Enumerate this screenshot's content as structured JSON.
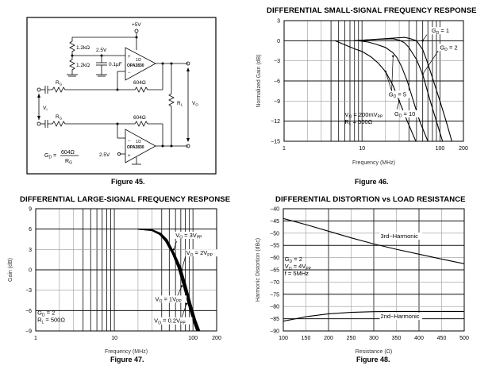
{
  "figure45": {
    "caption": "Figure 45.",
    "labels": {
      "supply": "+5V",
      "r_top": "1.2kΩ",
      "r_bot": "1.2kΩ",
      "bias": "2.5V",
      "cap": "0.1µF",
      "opamp_half": "1/2",
      "opamp_name": "OPA2830",
      "rf_top": "604Ω",
      "rf_bot": "604Ω",
      "rg": "R",
      "rg_sub": "G",
      "rl": "R",
      "rl_sub": "L",
      "vi": "V",
      "vi_sub": "I",
      "vo": "V",
      "vo_sub": "O",
      "bias_bottom": "2.5V",
      "plus": "+",
      "minus": "−",
      "gain_lhs": "G",
      "gain_lhs_sub": "D",
      "gain_eq": "=",
      "gain_num": "604Ω",
      "gain_den": "R",
      "gain_den_sub": "G"
    }
  },
  "chart_data": [
    {
      "id": "fig46",
      "type": "line",
      "title": "DIFFERENTIAL SMALL-SIGNAL FREQUENCY RESPONSE",
      "caption": "Figure 46.",
      "xlabel": "Frequency (MHz)",
      "ylabel": "Normalized Gain (dB)",
      "xscale": "log",
      "xlim": [
        1,
        200
      ],
      "ylim": [
        -15,
        3
      ],
      "xticks": [
        1,
        10,
        100,
        200
      ],
      "xtick_labels": [
        "1",
        "10",
        "100",
        "200"
      ],
      "yticks": [
        3,
        0,
        -3,
        -6,
        -9,
        -12,
        -15
      ],
      "ytick_labels": [
        "3",
        "0",
        "−3",
        "−6",
        "−9",
        "−12",
        "−15"
      ],
      "grid": true,
      "series": [
        {
          "name": "GD = 1",
          "x": [
            8,
            15,
            25,
            35,
            42,
            50,
            60,
            68,
            80,
            100,
            120,
            142
          ],
          "y": [
            0,
            0.2,
            0.4,
            0.5,
            0.3,
            0,
            -1.3,
            -3,
            -5.5,
            -9,
            -12,
            -15
          ]
        },
        {
          "name": "GD = 2",
          "x": [
            8,
            15,
            25,
            30,
            35,
            40,
            50,
            60,
            75,
            90,
            108
          ],
          "y": [
            0,
            0.2,
            0.3,
            0.1,
            -0.3,
            -1,
            -2.8,
            -5,
            -9,
            -12,
            -15
          ]
        },
        {
          "name": "GD = 5",
          "x": [
            9,
            12,
            15,
            20,
            25,
            28,
            32,
            38,
            45,
            55,
            70
          ],
          "y": [
            0,
            -0.2,
            -0.5,
            -1,
            -1.8,
            -2.5,
            -3.8,
            -6,
            -8.8,
            -12,
            -15
          ]
        },
        {
          "name": "GD = 10",
          "x": [
            4.5,
            6,
            8,
            10,
            13,
            16,
            20,
            25,
            30,
            38,
            49
          ],
          "y": [
            0,
            -0.6,
            -1.2,
            -1.6,
            -2.4,
            -3.3,
            -4.6,
            -6.7,
            -9,
            -12,
            -15
          ]
        }
      ],
      "annotations": [
        {
          "parts": [
            [
              "G",
              ""
            ],
            [
              "D",
              "sub"
            ],
            [
              " = 1",
              ""
            ]
          ],
          "x": 78,
          "y": 1.2,
          "ax": 60,
          "ay": 0,
          "bx": 68,
          "by": 0.9
        },
        {
          "parts": [
            [
              "G",
              ""
            ],
            [
              "D",
              "sub"
            ],
            [
              " = 2",
              ""
            ]
          ],
          "x": 100,
          "y": -1.3,
          "ax": 60,
          "ay": -5,
          "bx": 95,
          "by": -1.5
        },
        {
          "parts": [
            [
              "G",
              ""
            ],
            [
              "D",
              "sub"
            ],
            [
              " = 5",
              ""
            ]
          ],
          "x": 22,
          "y": -8.3,
          "ax": 25,
          "ay": -2.3,
          "bx": 24,
          "by": -7.5,
          "ax2": 20,
          "ay2": -4.6,
          "bx2": 24,
          "by2": -7.5
        },
        {
          "parts": [
            [
              "G",
              ""
            ],
            [
              "D",
              "sub"
            ],
            [
              " = 10",
              ""
            ]
          ],
          "x": 26,
          "y": -11.2,
          "ax": 30,
          "ay": -9,
          "bx": 28,
          "by": -10.2
        }
      ],
      "note": [
        [
          [
            "V",
            ""
          ],
          [
            "O",
            "sub"
          ],
          [
            " = 200mV",
            ""
          ],
          [
            "PP",
            "sub"
          ]
        ],
        [
          [
            "R",
            ""
          ],
          [
            "L",
            "sub"
          ],
          [
            " = 500Ω",
            ""
          ]
        ]
      ]
    },
    {
      "id": "fig47",
      "type": "line",
      "title": "DIFFERENTIAL LARGE-SIGNAL FREQUENCY RESPONSE",
      "caption": "Figure 47.",
      "xlabel": "Frequency (MHz)",
      "ylabel": "Gain (dB)",
      "xscale": "log",
      "xlim": [
        1,
        200
      ],
      "ylim": [
        -9,
        9
      ],
      "xticks": [
        1,
        10,
        100,
        200
      ],
      "xtick_labels": [
        "1",
        "10",
        "100",
        "200"
      ],
      "yticks": [
        9,
        6,
        3,
        0,
        -3,
        -6,
        -9
      ],
      "ytick_labels": [
        "9",
        "6",
        "3",
        "0",
        "−3",
        "−6",
        "−9"
      ],
      "grid": true,
      "series": [
        {
          "name": "VO = 3VPP",
          "x": [
            20,
            30,
            38,
            45,
            55,
            65,
            75,
            88,
            100,
            112
          ],
          "y": [
            6,
            5.8,
            5.2,
            4.2,
            2.4,
            0.3,
            -2.2,
            -5.2,
            -7.4,
            -9
          ]
        },
        {
          "name": "VO = 2VPP",
          "x": [
            20,
            30,
            38,
            45,
            56,
            66,
            77,
            90,
            102,
            115
          ],
          "y": [
            6,
            5.85,
            5.25,
            4.3,
            2.4,
            0.3,
            -2.2,
            -5.2,
            -7.4,
            -9
          ]
        },
        {
          "name": "VO = 1VPP",
          "x": [
            20,
            30,
            38,
            46,
            57,
            68,
            79,
            92,
            105,
            118
          ],
          "y": [
            6,
            5.9,
            5.3,
            4.3,
            2.4,
            0.3,
            -2.2,
            -5.2,
            -7.4,
            -9
          ]
        },
        {
          "name": "VO = 0.2VPP",
          "x": [
            20,
            30,
            39,
            47,
            58,
            70,
            81,
            95,
            108,
            122
          ],
          "y": [
            6,
            5.9,
            5.35,
            4.4,
            2.4,
            0.3,
            -2.2,
            -5.2,
            -7.4,
            -9
          ]
        }
      ],
      "annotations": [
        {
          "parts": [
            [
              "V",
              ""
            ],
            [
              "O",
              "sub"
            ],
            [
              " = 3V",
              ""
            ],
            [
              "PP",
              "sub"
            ]
          ],
          "x": 60,
          "y": 4.8,
          "ax": 57,
          "ay": 3,
          "bx": 62,
          "by": 4.2
        },
        {
          "parts": [
            [
              "V",
              ""
            ],
            [
              "O",
              "sub"
            ],
            [
              " = 2V",
              ""
            ],
            [
              "PP",
              "sub"
            ]
          ],
          "x": 82,
          "y": 2.2,
          "ax": 72,
          "ay": 0,
          "bx": 80,
          "by": 1.9
        },
        {
          "parts": [
            [
              "V",
              ""
            ],
            [
              "O",
              "sub"
            ],
            [
              " = 1V",
              ""
            ],
            [
              "PP",
              "sub"
            ]
          ],
          "x": 33,
          "y": -4.6,
          "ax": 72,
          "ay": -2.4,
          "bx": 62,
          "by": -4.1
        },
        {
          "parts": [
            [
              "V",
              ""
            ],
            [
              "O",
              "sub"
            ],
            [
              " = 0.2V",
              ""
            ],
            [
              "PP",
              "sub"
            ]
          ],
          "x": 32,
          "y": -7.8,
          "ax": 83,
          "ay": -5,
          "bx": 72,
          "by": -7.0
        }
      ],
      "note": [
        [
          [
            "G",
            ""
          ],
          [
            "D",
            "sub"
          ],
          [
            " = 2",
            ""
          ]
        ],
        [
          [
            "R",
            ""
          ],
          [
            "L",
            "sub"
          ],
          [
            " = 500Ω",
            ""
          ]
        ]
      ]
    },
    {
      "id": "fig48",
      "type": "line",
      "title": "DIFFERENTIAL DISTORTION vs LOAD RESISTANCE",
      "caption": "Figure 48.",
      "xlabel": "Resistance (Ω)",
      "ylabel": "Harmonic Distortion (dBc)",
      "xscale": "linear",
      "xlim": [
        100,
        500
      ],
      "ylim": [
        -90,
        -40
      ],
      "xticks": [
        100,
        150,
        200,
        250,
        300,
        350,
        400,
        450,
        500
      ],
      "xtick_labels": [
        "100",
        "150",
        "200",
        "250",
        "300",
        "350",
        "400",
        "450",
        "500"
      ],
      "yticks": [
        -40,
        -45,
        -50,
        -55,
        -60,
        -65,
        -70,
        -75,
        -80,
        -85,
        -90
      ],
      "ytick_labels": [
        "−40",
        "−45",
        "−50",
        "−55",
        "−60",
        "−65",
        "−70",
        "−75",
        "−80",
        "−85",
        "−90"
      ],
      "grid": true,
      "series": [
        {
          "name": "3rd−Harmonic",
          "x": [
            100,
            150,
            200,
            250,
            300,
            350,
            400,
            450,
            500
          ],
          "y": [
            -44,
            -46.5,
            -49.2,
            -51.9,
            -54.4,
            -56.6,
            -58.6,
            -60.6,
            -62.5
          ]
        },
        {
          "name": "2nd−Harmonic",
          "x": [
            100,
            150,
            200,
            250,
            300,
            350,
            400,
            450,
            500
          ],
          "y": [
            -86,
            -84.2,
            -83,
            -82.4,
            -82.1,
            -82,
            -82,
            -82,
            -82
          ]
        }
      ],
      "annotations": [
        {
          "parts": [
            [
              "3rd−Harmonic",
              ""
            ]
          ],
          "x": 315,
          "y": -52
        },
        {
          "parts": [
            [
              "2nd−Harmonic",
              ""
            ]
          ],
          "x": 315,
          "y": -84.8
        }
      ],
      "note": [
        [
          [
            "G",
            ""
          ],
          [
            "D",
            "sub"
          ],
          [
            " = 2",
            ""
          ]
        ],
        [
          [
            "V",
            ""
          ],
          [
            "O",
            "sub"
          ],
          [
            " = 4V",
            ""
          ],
          [
            "PP",
            "sub"
          ]
        ],
        [
          [
            "f = 5MHz",
            ""
          ]
        ]
      ]
    }
  ]
}
